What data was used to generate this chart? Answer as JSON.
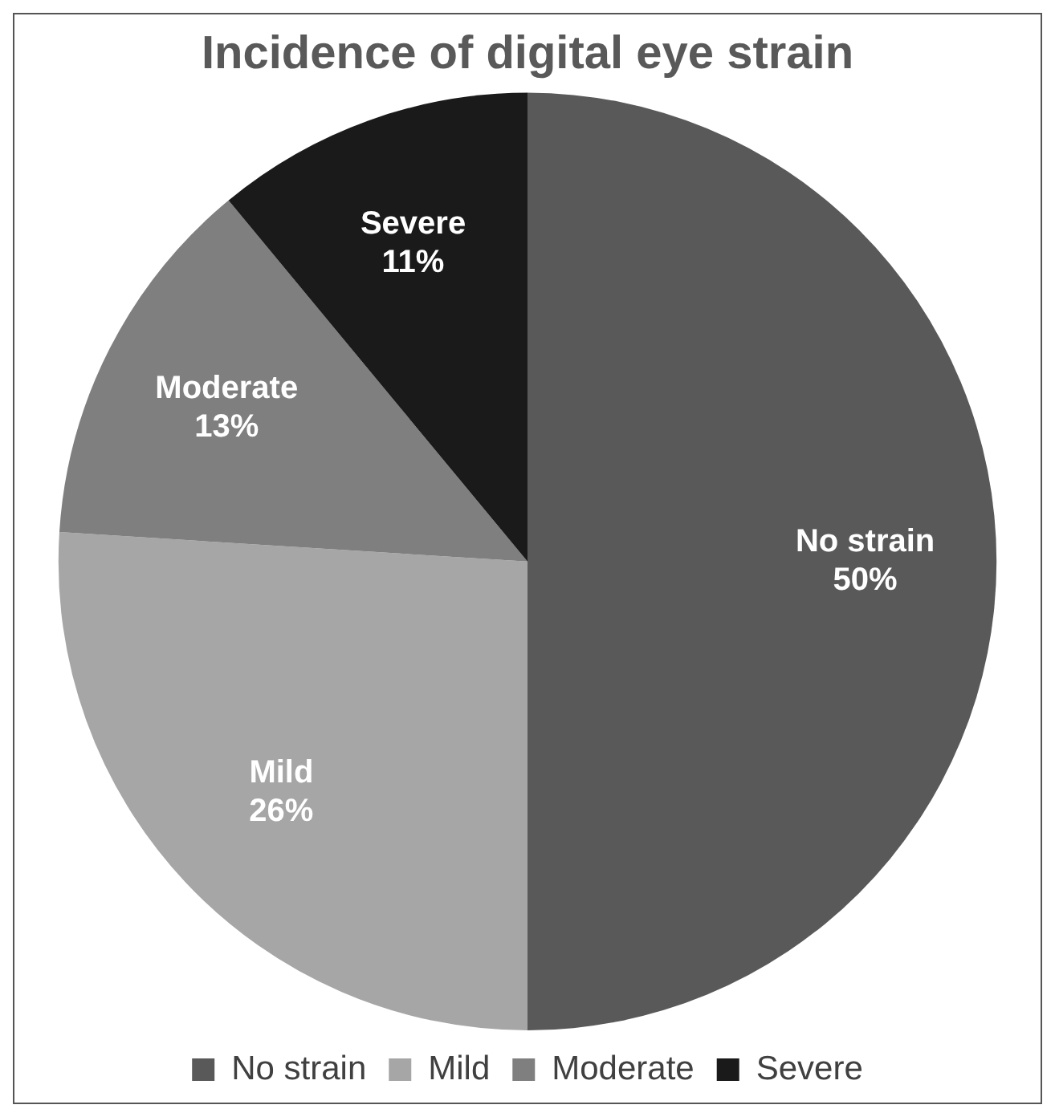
{
  "chart_data": {
    "type": "pie",
    "title": "Incidence of digital eye strain",
    "categories": [
      "No strain",
      "Mild",
      "Moderate",
      "Severe"
    ],
    "values": [
      50,
      26,
      13,
      11
    ],
    "value_labels": [
      "50%",
      "26%",
      "13%",
      "11%"
    ],
    "colors": [
      "#595959",
      "#a6a6a6",
      "#7f7f7f",
      "#1a1a1a"
    ],
    "legend": "bottom"
  }
}
